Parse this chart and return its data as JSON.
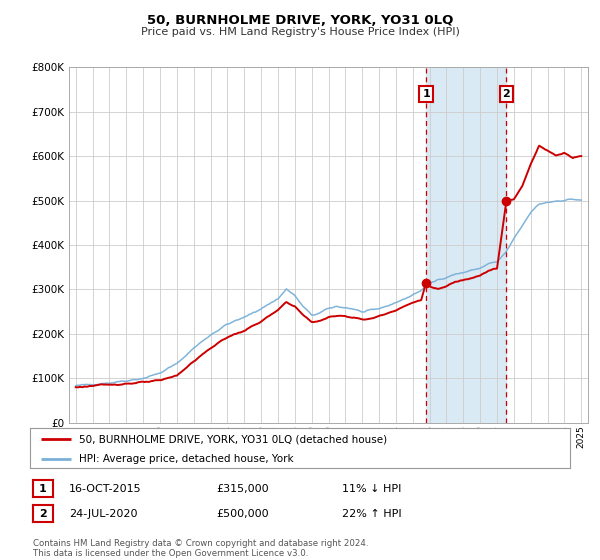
{
  "title": "50, BURNHOLME DRIVE, YORK, YO31 0LQ",
  "subtitle": "Price paid vs. HM Land Registry's House Price Index (HPI)",
  "ylim": [
    0,
    800000
  ],
  "yticks": [
    0,
    100000,
    200000,
    300000,
    400000,
    500000,
    600000,
    700000,
    800000
  ],
  "ytick_labels": [
    "£0",
    "£100K",
    "£200K",
    "£300K",
    "£400K",
    "£500K",
    "£600K",
    "£700K",
    "£800K"
  ],
  "xlim_start": 1994.6,
  "xlim_end": 2025.4,
  "hpi_color": "#7ab0d8",
  "price_color": "#cc0000",
  "shade_color": "#daeaf5",
  "marker1_date": 2015.79,
  "marker1_value": 315000,
  "marker2_date": 2020.56,
  "marker2_value": 500000,
  "vline1_x": 2015.79,
  "vline2_x": 2020.56,
  "shade_start": 2015.79,
  "shade_end": 2020.56,
  "legend_label1": "50, BURNHOLME DRIVE, YORK, YO31 0LQ (detached house)",
  "legend_label2": "HPI: Average price, detached house, York",
  "annotation1_label": "1",
  "annotation1_date": "16-OCT-2015",
  "annotation1_price": "£315,000",
  "annotation1_hpi": "11% ↓ HPI",
  "annotation2_label": "2",
  "annotation2_date": "24-JUL-2020",
  "annotation2_price": "£500,000",
  "annotation2_hpi": "22% ↑ HPI",
  "footer1": "Contains HM Land Registry data © Crown copyright and database right 2024.",
  "footer2": "This data is licensed under the Open Government Licence v3.0.",
  "background_color": "#ffffff",
  "plot_bg_color": "#ffffff",
  "grid_color": "#cccccc"
}
